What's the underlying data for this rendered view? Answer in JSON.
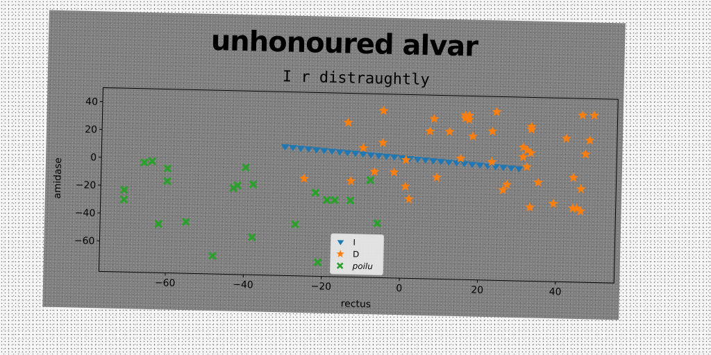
{
  "chart_data": {
    "type": "scatter",
    "title": "unhonoured alvar",
    "subtitle": "I r distraughtly",
    "xlabel": "rectus",
    "ylabel": "amidase",
    "xlim": [
      -77,
      55
    ],
    "ylim": [
      -82,
      50
    ],
    "xticks": [
      -60,
      -40,
      -20,
      0,
      20,
      40
    ],
    "yticks": [
      -60,
      -40,
      -20,
      0,
      20,
      40
    ],
    "grid": false,
    "legend": "bottom-center",
    "series": [
      {
        "name": "I",
        "marker": "triangle-down",
        "color": "#1f77b4",
        "x": [
          -30,
          -28,
          -26,
          -24,
          -22,
          -20,
          -18,
          -16,
          -14,
          -12,
          -10,
          -8,
          -6,
          -4,
          -2,
          0,
          2,
          4,
          6,
          8,
          10,
          12,
          14,
          16,
          18,
          20,
          22,
          24,
          26,
          28,
          30
        ],
        "y": [
          10.5,
          10.1,
          9.7,
          9.3,
          8.9,
          8.5,
          8.1,
          7.7,
          7.3,
          6.9,
          6.5,
          6.1,
          5.7,
          5.3,
          4.9,
          4.5,
          4.1,
          3.7,
          3.3,
          2.9,
          2.5,
          2.1,
          1.7,
          1.3,
          0.9,
          0.5,
          0.1,
          -0.3,
          -0.7,
          -1.1,
          -1.5
        ]
      },
      {
        "name": "D",
        "marker": "star",
        "color": "#ff7f0e",
        "x": [
          -14,
          -10,
          -5,
          -5,
          -7,
          -25,
          -13,
          -2,
          1,
          1,
          2,
          8,
          9,
          7,
          12,
          16,
          17,
          18,
          17,
          16,
          15,
          23,
          23,
          26,
          27,
          24,
          31,
          32,
          33,
          33,
          32,
          33,
          35,
          31,
          39,
          42,
          44,
          46,
          45,
          47,
          48,
          49,
          46,
          44,
          46,
          33
        ],
        "y": [
          29,
          11,
          38,
          15,
          -6,
          -12,
          -13,
          -6,
          3,
          -16,
          -25,
          33,
          -9,
          24,
          24,
          34,
          36,
          21,
          33,
          36,
          5,
          3,
          25,
          -17,
          -13,
          39,
          14,
          12,
          29,
          10,
          0,
          27,
          -11,
          7,
          -26,
          21,
          -7,
          -15,
          -29,
          10,
          20,
          38,
          -31,
          -29,
          38,
          -29
        ]
      },
      {
        "name": "poilu",
        "marker": "x-filled",
        "color": "#2ca02c",
        "x": [
          -71,
          -71,
          -66,
          -64,
          -60,
          -60,
          -62,
          -55,
          -48,
          -43,
          -42,
          -38,
          -38,
          -40,
          -27,
          -22,
          -19,
          -17,
          -13,
          -8,
          -6,
          -21
        ],
        "y": [
          -23,
          -30,
          -3,
          -2,
          -7,
          -16,
          -47,
          -45,
          -69,
          -20,
          -18,
          -17,
          -55,
          -5,
          -45,
          -22,
          -27,
          -27,
          -27,
          -12,
          -43,
          -72
        ]
      }
    ]
  }
}
